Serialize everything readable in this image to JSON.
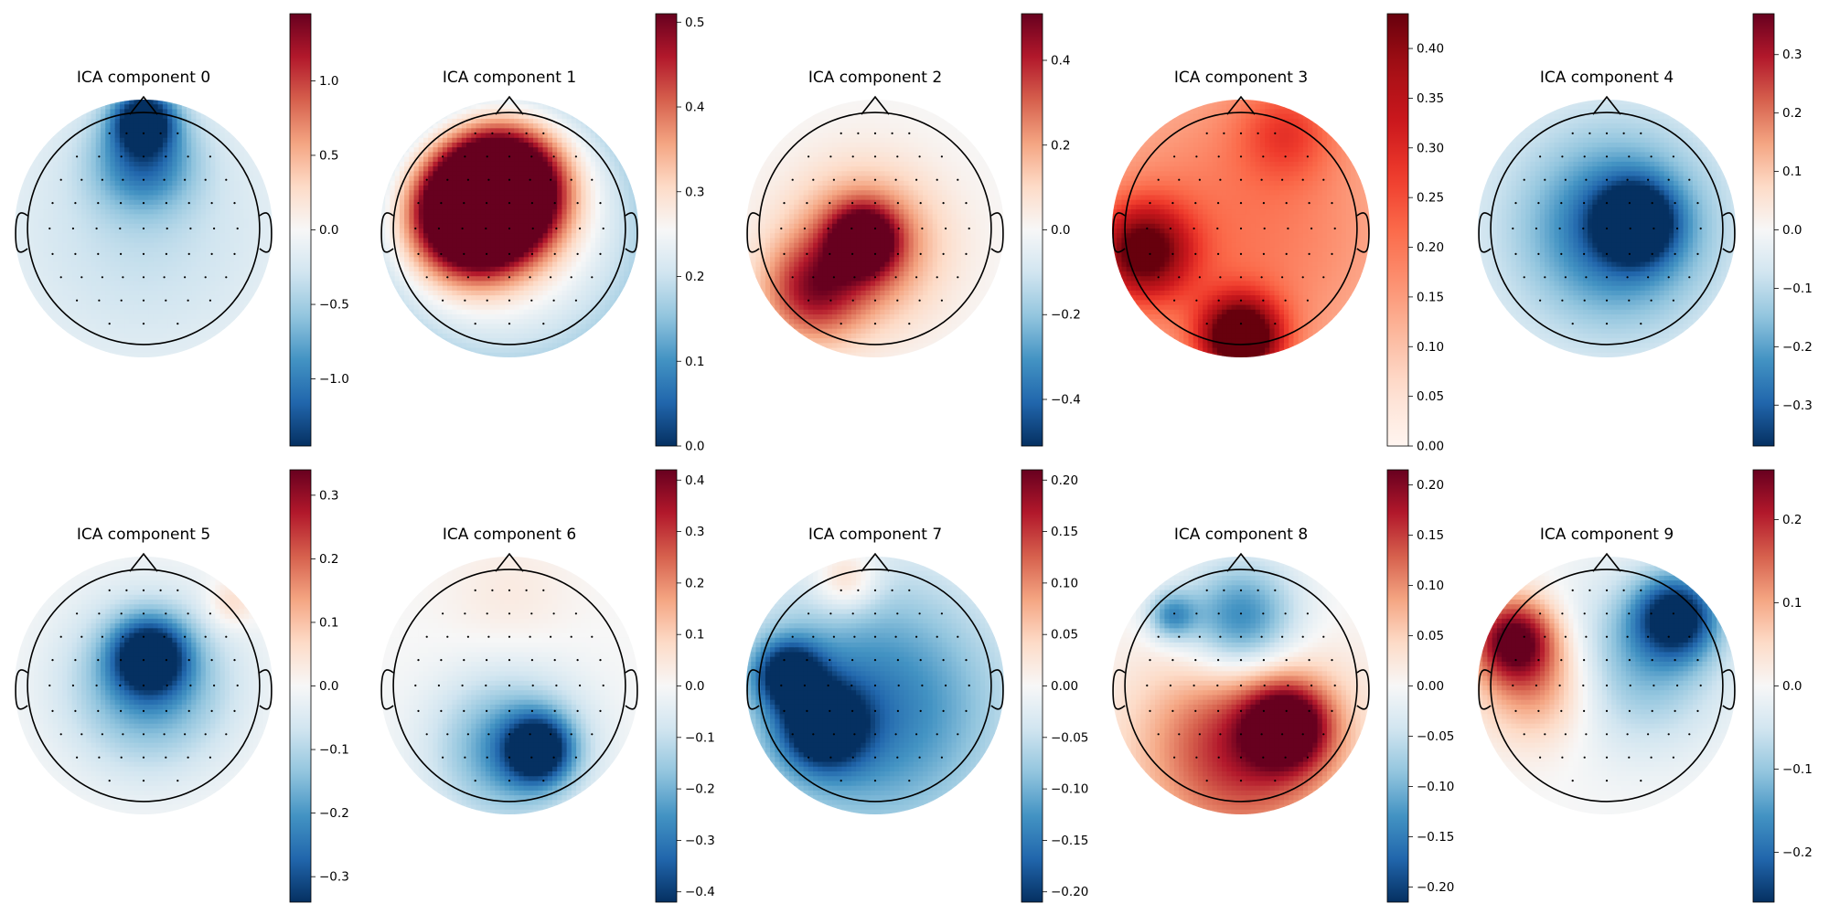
{
  "chart_data": [
    {
      "type": "heatmap",
      "title": "ICA component 0",
      "colorbar": {
        "colormap": "RdBu_r",
        "vmin": -1.45,
        "vmax": 1.45,
        "ticks": [
          1.0,
          0.5,
          0.0,
          -0.5,
          -1.0
        ],
        "tick_labels": [
          "1.0",
          "0.5",
          "0.0",
          "−0.5",
          "−1.0"
        ]
      },
      "blobs": [
        {
          "x": 0.0,
          "y": 0.95,
          "v": -1.45,
          "s": 0.18
        },
        {
          "x": 0.0,
          "y": 0.6,
          "v": -0.9,
          "s": 0.3
        },
        {
          "x": 0.0,
          "y": 0.0,
          "v": -0.35,
          "s": 0.9
        }
      ]
    },
    {
      "type": "heatmap",
      "title": "ICA component 1",
      "colorbar": {
        "colormap": "RdBu_r",
        "vmin": 0.0,
        "vmax": 0.51,
        "ticks": [
          0.5,
          0.4,
          0.3,
          0.2,
          0.1,
          0.0
        ],
        "tick_labels": [
          "0.5",
          "0.4",
          "0.3",
          "0.2",
          "0.1",
          "0.0"
        ]
      },
      "blobs": [
        {
          "x": -0.05,
          "y": 0.0,
          "v": 0.28,
          "s": 1.2
        },
        {
          "x": -0.05,
          "y": 0.35,
          "v": 0.51,
          "s": 0.35
        },
        {
          "x": -0.35,
          "y": 0.1,
          "v": 0.42,
          "s": 0.35
        }
      ]
    },
    {
      "type": "heatmap",
      "title": "ICA component 2",
      "colorbar": {
        "colormap": "RdBu_r",
        "vmin": -0.51,
        "vmax": 0.51,
        "ticks": [
          0.4,
          0.2,
          0.0,
          -0.2,
          -0.4
        ],
        "tick_labels": [
          "0.4",
          "0.2",
          "0.0",
          "−0.2",
          "−0.4"
        ]
      },
      "blobs": [
        {
          "x": -0.1,
          "y": -0.1,
          "v": 0.51,
          "s": 0.2
        },
        {
          "x": -0.1,
          "y": -0.15,
          "v": 0.32,
          "s": 0.45
        },
        {
          "x": -0.55,
          "y": -0.55,
          "v": 0.35,
          "s": 0.3
        }
      ]
    },
    {
      "type": "heatmap",
      "title": "ICA component 3",
      "colorbar": {
        "colormap": "Reds",
        "vmin": 0.0,
        "vmax": 0.435,
        "ticks": [
          0.4,
          0.35,
          0.3,
          0.25,
          0.2,
          0.15,
          0.1,
          0.05,
          0.0
        ],
        "tick_labels": [
          "0.40",
          "0.35",
          "0.30",
          "0.25",
          "0.20",
          "0.15",
          "0.10",
          "0.05",
          "0.00"
        ]
      },
      "blobs": [
        {
          "x": 0.0,
          "y": 0.0,
          "v": 0.2,
          "s": 1.3
        },
        {
          "x": 0.0,
          "y": -0.95,
          "v": 0.435,
          "s": 0.25
        },
        {
          "x": -0.85,
          "y": -0.2,
          "v": 0.33,
          "s": 0.3
        },
        {
          "x": 0.4,
          "y": 0.85,
          "v": 0.13,
          "s": 0.3
        }
      ]
    },
    {
      "type": "heatmap",
      "title": "ICA component 4",
      "colorbar": {
        "colormap": "RdBu_r",
        "vmin": -0.37,
        "vmax": 0.37,
        "ticks": [
          0.3,
          0.2,
          0.1,
          0.0,
          -0.1,
          -0.2,
          -0.3
        ],
        "tick_labels": [
          "0.3",
          "0.2",
          "0.1",
          "0.0",
          "−0.1",
          "−0.2",
          "−0.3"
        ]
      },
      "blobs": [
        {
          "x": 0.25,
          "y": 0.05,
          "v": -0.37,
          "s": 0.22
        },
        {
          "x": 0.1,
          "y": 0.0,
          "v": -0.22,
          "s": 0.5
        },
        {
          "x": 0.0,
          "y": 0.0,
          "v": -0.1,
          "s": 1.0
        }
      ]
    },
    {
      "type": "heatmap",
      "title": "ICA component 5",
      "colorbar": {
        "colormap": "RdBu_r",
        "vmin": -0.34,
        "vmax": 0.34,
        "ticks": [
          0.3,
          0.2,
          0.1,
          0.0,
          -0.1,
          -0.2,
          -0.3
        ],
        "tick_labels": [
          "0.3",
          "0.2",
          "0.1",
          "0.0",
          "−0.1",
          "−0.2",
          "−0.3"
        ]
      },
      "blobs": [
        {
          "x": 0.05,
          "y": 0.25,
          "v": -0.34,
          "s": 0.22
        },
        {
          "x": 0.05,
          "y": 0.0,
          "v": -0.2,
          "s": 0.5
        },
        {
          "x": 0.75,
          "y": 0.7,
          "v": 0.08,
          "s": 0.15
        }
      ]
    },
    {
      "type": "heatmap",
      "title": "ICA component 6",
      "colorbar": {
        "colormap": "RdBu_r",
        "vmin": -0.42,
        "vmax": 0.42,
        "ticks": [
          0.4,
          0.3,
          0.2,
          0.1,
          0.0,
          -0.1,
          -0.2,
          -0.3,
          -0.4
        ],
        "tick_labels": [
          "0.4",
          "0.3",
          "0.2",
          "0.1",
          "0.0",
          "−0.1",
          "−0.2",
          "−0.3",
          "−0.4"
        ]
      },
      "blobs": [
        {
          "x": 0.25,
          "y": -0.55,
          "v": -0.42,
          "s": 0.2
        },
        {
          "x": 0.0,
          "y": -0.55,
          "v": -0.25,
          "s": 0.45
        },
        {
          "x": 0.0,
          "y": 0.75,
          "v": 0.04,
          "s": 0.4
        }
      ]
    },
    {
      "type": "heatmap",
      "title": "ICA component 7",
      "colorbar": {
        "colormap": "RdBu_r",
        "vmin": -0.21,
        "vmax": 0.21,
        "ticks": [
          0.2,
          0.15,
          0.1,
          0.05,
          0.0,
          -0.05,
          -0.1,
          -0.15,
          -0.2
        ],
        "tick_labels": [
          "0.20",
          "0.15",
          "0.10",
          "0.05",
          "0.00",
          "−0.05",
          "−0.10",
          "−0.15",
          "−0.20"
        ]
      },
      "blobs": [
        {
          "x": 0.0,
          "y": -0.2,
          "v": -0.15,
          "s": 0.8
        },
        {
          "x": -0.45,
          "y": -0.35,
          "v": -0.21,
          "s": 0.25
        },
        {
          "x": -0.75,
          "y": 0.1,
          "v": -0.2,
          "s": 0.2
        },
        {
          "x": -0.25,
          "y": 0.9,
          "v": 0.08,
          "s": 0.2
        },
        {
          "x": 0.4,
          "y": 0.7,
          "v": 0.0,
          "s": 0.25
        }
      ]
    },
    {
      "type": "heatmap",
      "title": "ICA component 8",
      "colorbar": {
        "colormap": "RdBu_r",
        "vmin": -0.215,
        "vmax": 0.215,
        "ticks": [
          0.2,
          0.15,
          0.1,
          0.05,
          0.0,
          -0.05,
          -0.1,
          -0.15,
          -0.2
        ],
        "tick_labels": [
          "0.20",
          "0.15",
          "0.10",
          "0.05",
          "0.00",
          "−0.05",
          "−0.10",
          "−0.15",
          "−0.20"
        ]
      },
      "blobs": [
        {
          "x": 0.0,
          "y": 0.55,
          "v": -0.16,
          "s": 0.35
        },
        {
          "x": 0.0,
          "y": -0.55,
          "v": 0.17,
          "s": 0.6
        },
        {
          "x": 0.4,
          "y": -0.35,
          "v": 0.215,
          "s": 0.25
        },
        {
          "x": -0.6,
          "y": 0.6,
          "v": -0.12,
          "s": 0.15
        }
      ]
    },
    {
      "type": "heatmap",
      "title": "ICA component 9",
      "colorbar": {
        "colormap": "RdBu_r",
        "vmin": -0.26,
        "vmax": 0.26,
        "ticks": [
          0.2,
          0.1,
          0.0,
          -0.1,
          -0.2
        ],
        "tick_labels": [
          "0.2",
          "0.1",
          "0.0",
          "−0.1",
          "−0.2"
        ]
      },
      "blobs": [
        {
          "x": -0.8,
          "y": 0.4,
          "v": 0.26,
          "s": 0.25
        },
        {
          "x": -0.6,
          "y": 0.0,
          "v": 0.12,
          "s": 0.35
        },
        {
          "x": 0.6,
          "y": 0.6,
          "v": -0.26,
          "s": 0.25
        },
        {
          "x": 0.3,
          "y": 0.2,
          "v": -0.12,
          "s": 0.5
        }
      ]
    }
  ]
}
